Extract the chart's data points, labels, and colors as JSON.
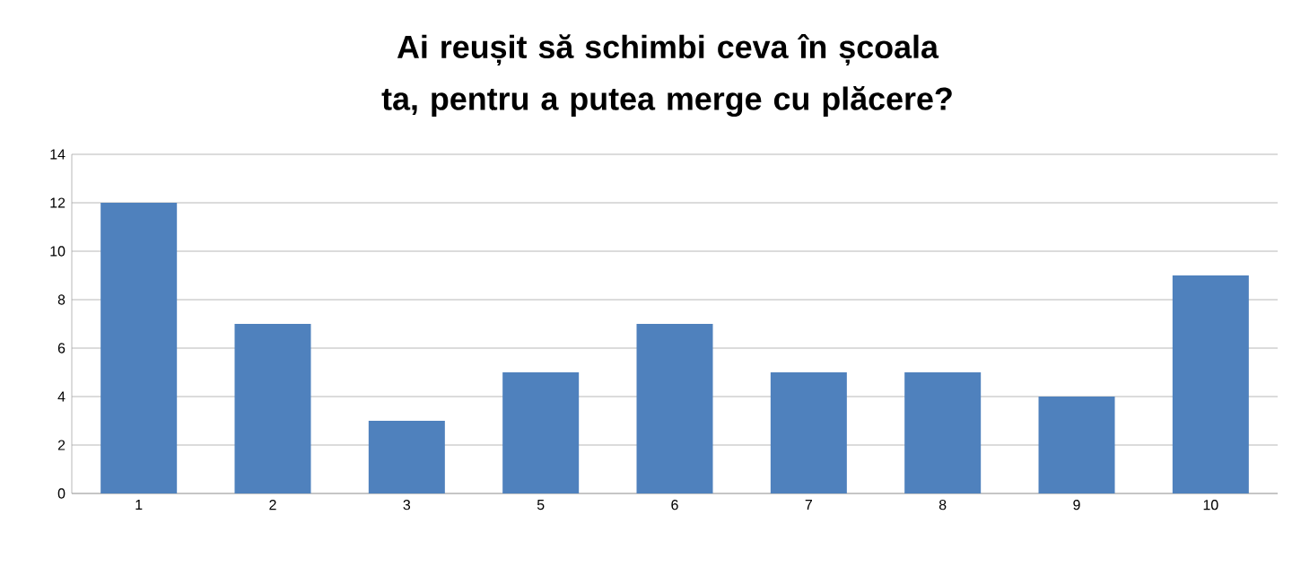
{
  "chart_data": {
    "type": "bar",
    "title": "Ai reușit să schimbi ceva în școala ta, pentru a putea merge cu plăcere?",
    "categories": [
      "1",
      "2",
      "3",
      "5",
      "6",
      "7",
      "8",
      "9",
      "10"
    ],
    "values": [
      12,
      7,
      3,
      5,
      7,
      5,
      5,
      4,
      9
    ],
    "color": "#4f81bd",
    "ylim": [
      0,
      14
    ],
    "yticks": [
      0,
      2,
      4,
      6,
      8,
      10,
      12,
      14
    ],
    "grid": "y"
  }
}
